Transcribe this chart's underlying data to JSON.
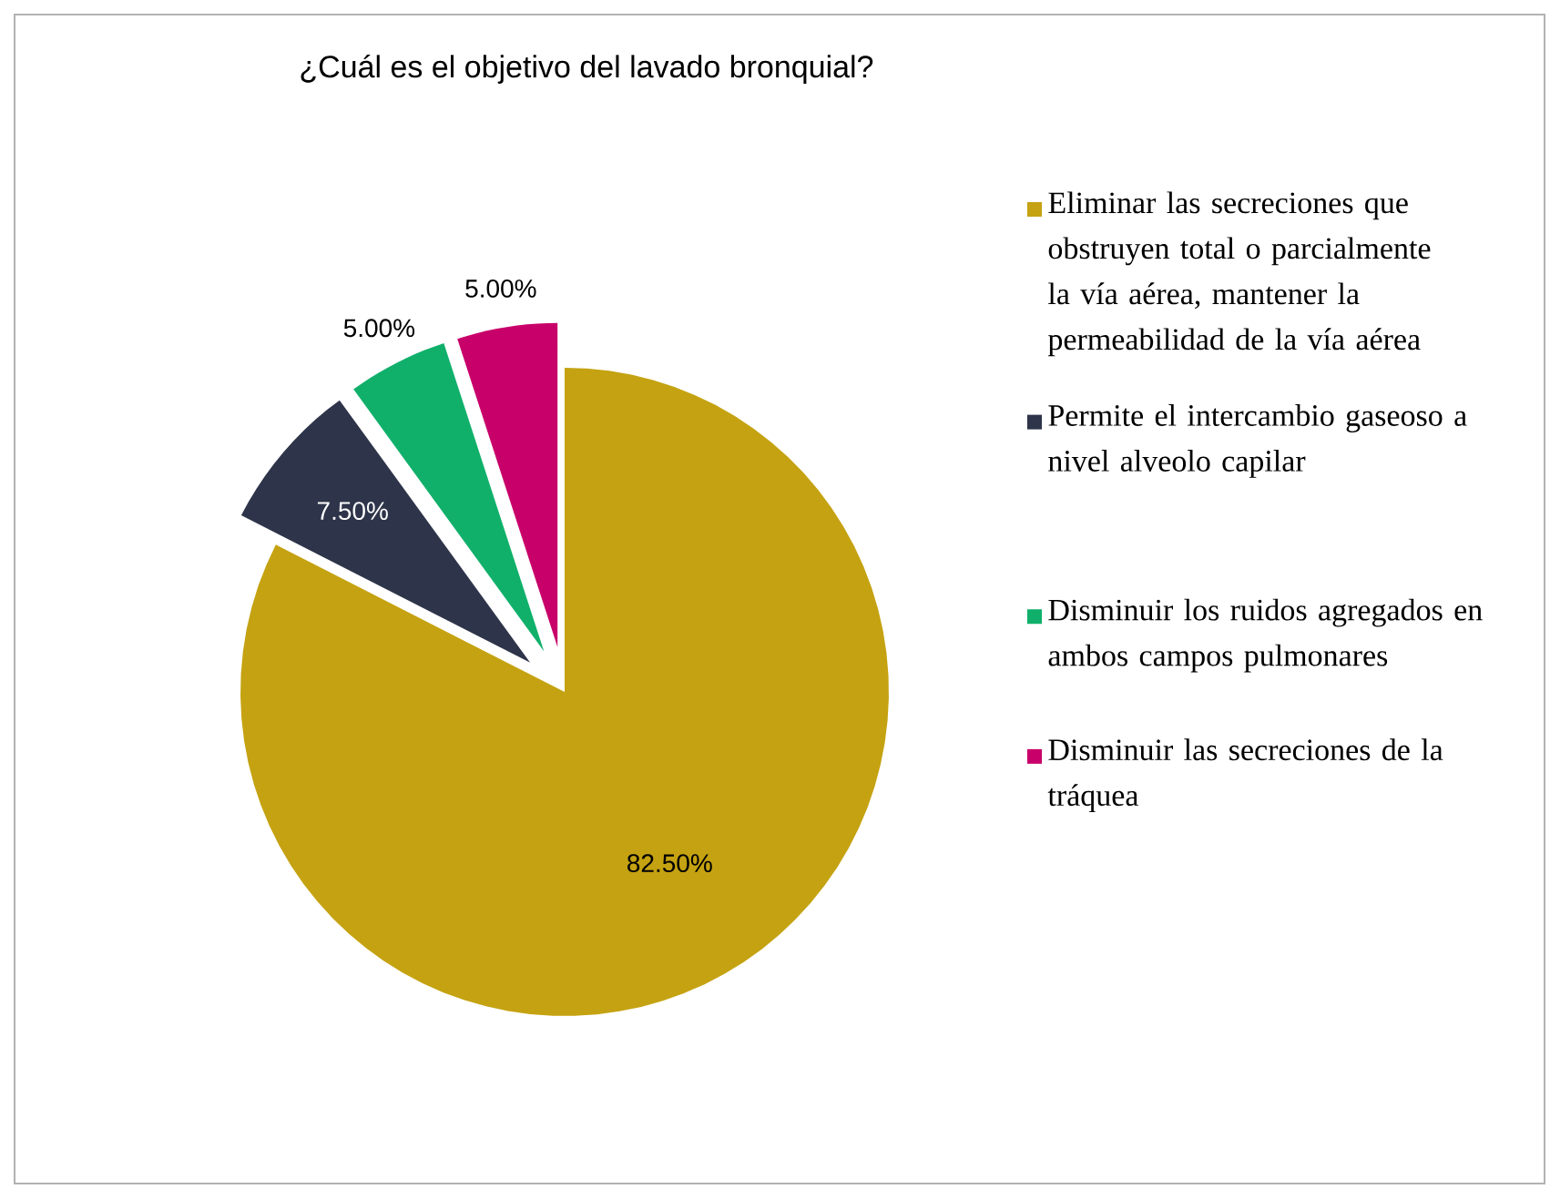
{
  "chart_data": {
    "type": "pie",
    "title": "¿Cuál es el objetivo del lavado bronquial?",
    "categories": [
      "Eliminar las secreciones que obstruyen total o parcialmente la vía aérea, mantener la permeabilidad de la vía aérea",
      "Permite el intercambio gaseoso a nivel alveolo capilar",
      "Disminuir los ruidos agregados en ambos campos pulmonares",
      "Disminuir las secreciones de la tráquea"
    ],
    "values": [
      82.5,
      7.5,
      5,
      5
    ],
    "colors": [
      "#c5a211",
      "#2e3449",
      "#10b06a",
      "#c8006a"
    ],
    "value_labels": [
      "82.50%",
      "7.50%",
      "5.00%",
      "5.00%"
    ],
    "legend": "right"
  }
}
